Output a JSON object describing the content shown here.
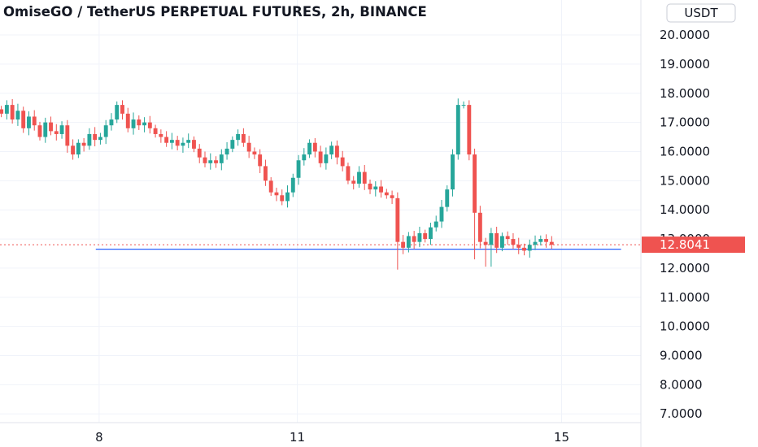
{
  "header": {
    "title": "OmiseGO / TetherUS PERPETUAL FUTURES, 2h, BINANCE",
    "currency_badge": "USDT"
  },
  "colors": {
    "up": "#26a69a",
    "down": "#ef5350",
    "support_line": "#2962ff",
    "last_price_line": "#ef5350",
    "grid": "#f0f3fa"
  },
  "chart_data": {
    "type": "candlestick",
    "title": "OmiseGO / TetherUS PERPETUAL FUTURES, 2h, BINANCE",
    "y_unit": "USDT",
    "ylim": [
      6.7,
      21.2
    ],
    "y_ticks": [
      "7.0000",
      "8.0000",
      "9.0000",
      "10.0000",
      "11.0000",
      "12.0000",
      "13.0000",
      "14.0000",
      "15.0000",
      "16.0000",
      "17.0000",
      "18.0000",
      "19.0000",
      "20.0000"
    ],
    "y_tick_values": [
      7,
      8,
      9,
      10,
      11,
      12,
      13,
      14,
      15,
      16,
      17,
      18,
      19,
      20
    ],
    "x_ticks": [
      {
        "label": "8",
        "value": 8
      },
      {
        "label": "11",
        "value": 11
      },
      {
        "label": "15",
        "value": 15
      }
    ],
    "x_range_days": [
      6.5,
      16.2
    ],
    "grid": true,
    "last_price": 12.8041,
    "last_price_label": "12.8041",
    "support_level": 12.65,
    "support_from_day": 7.95,
    "support_to_day": 15.9,
    "candle_step_days": 0.0833,
    "first_candle_day": 6.52,
    "closes": [
      17.3,
      17.6,
      17.1,
      17.4,
      16.8,
      17.2,
      16.9,
      16.5,
      17.0,
      16.7,
      16.6,
      16.9,
      16.2,
      15.9,
      16.3,
      16.2,
      16.6,
      16.4,
      16.5,
      16.9,
      17.1,
      17.6,
      17.3,
      16.8,
      17.1,
      16.9,
      17.0,
      16.8,
      16.6,
      16.5,
      16.3,
      16.4,
      16.2,
      16.3,
      16.4,
      16.1,
      15.8,
      15.6,
      15.7,
      15.6,
      15.9,
      16.1,
      16.4,
      16.6,
      16.3,
      16.0,
      15.9,
      15.5,
      15.0,
      14.6,
      14.5,
      14.3,
      14.6,
      15.1,
      15.7,
      15.9,
      16.3,
      16.0,
      15.6,
      15.9,
      16.2,
      15.8,
      15.5,
      15.0,
      14.9,
      15.3,
      14.9,
      14.7,
      14.8,
      14.6,
      14.5,
      14.4,
      12.9,
      12.7,
      13.1,
      12.9,
      13.2,
      13.0,
      13.4,
      13.6,
      14.1,
      14.7,
      15.9,
      17.6,
      17.6,
      15.9,
      13.9,
      12.9,
      12.8,
      13.2,
      12.7,
      13.1,
      13.0,
      12.8,
      12.7,
      12.6,
      12.8,
      12.9,
      13.0,
      12.9,
      12.8041
    ]
  }
}
